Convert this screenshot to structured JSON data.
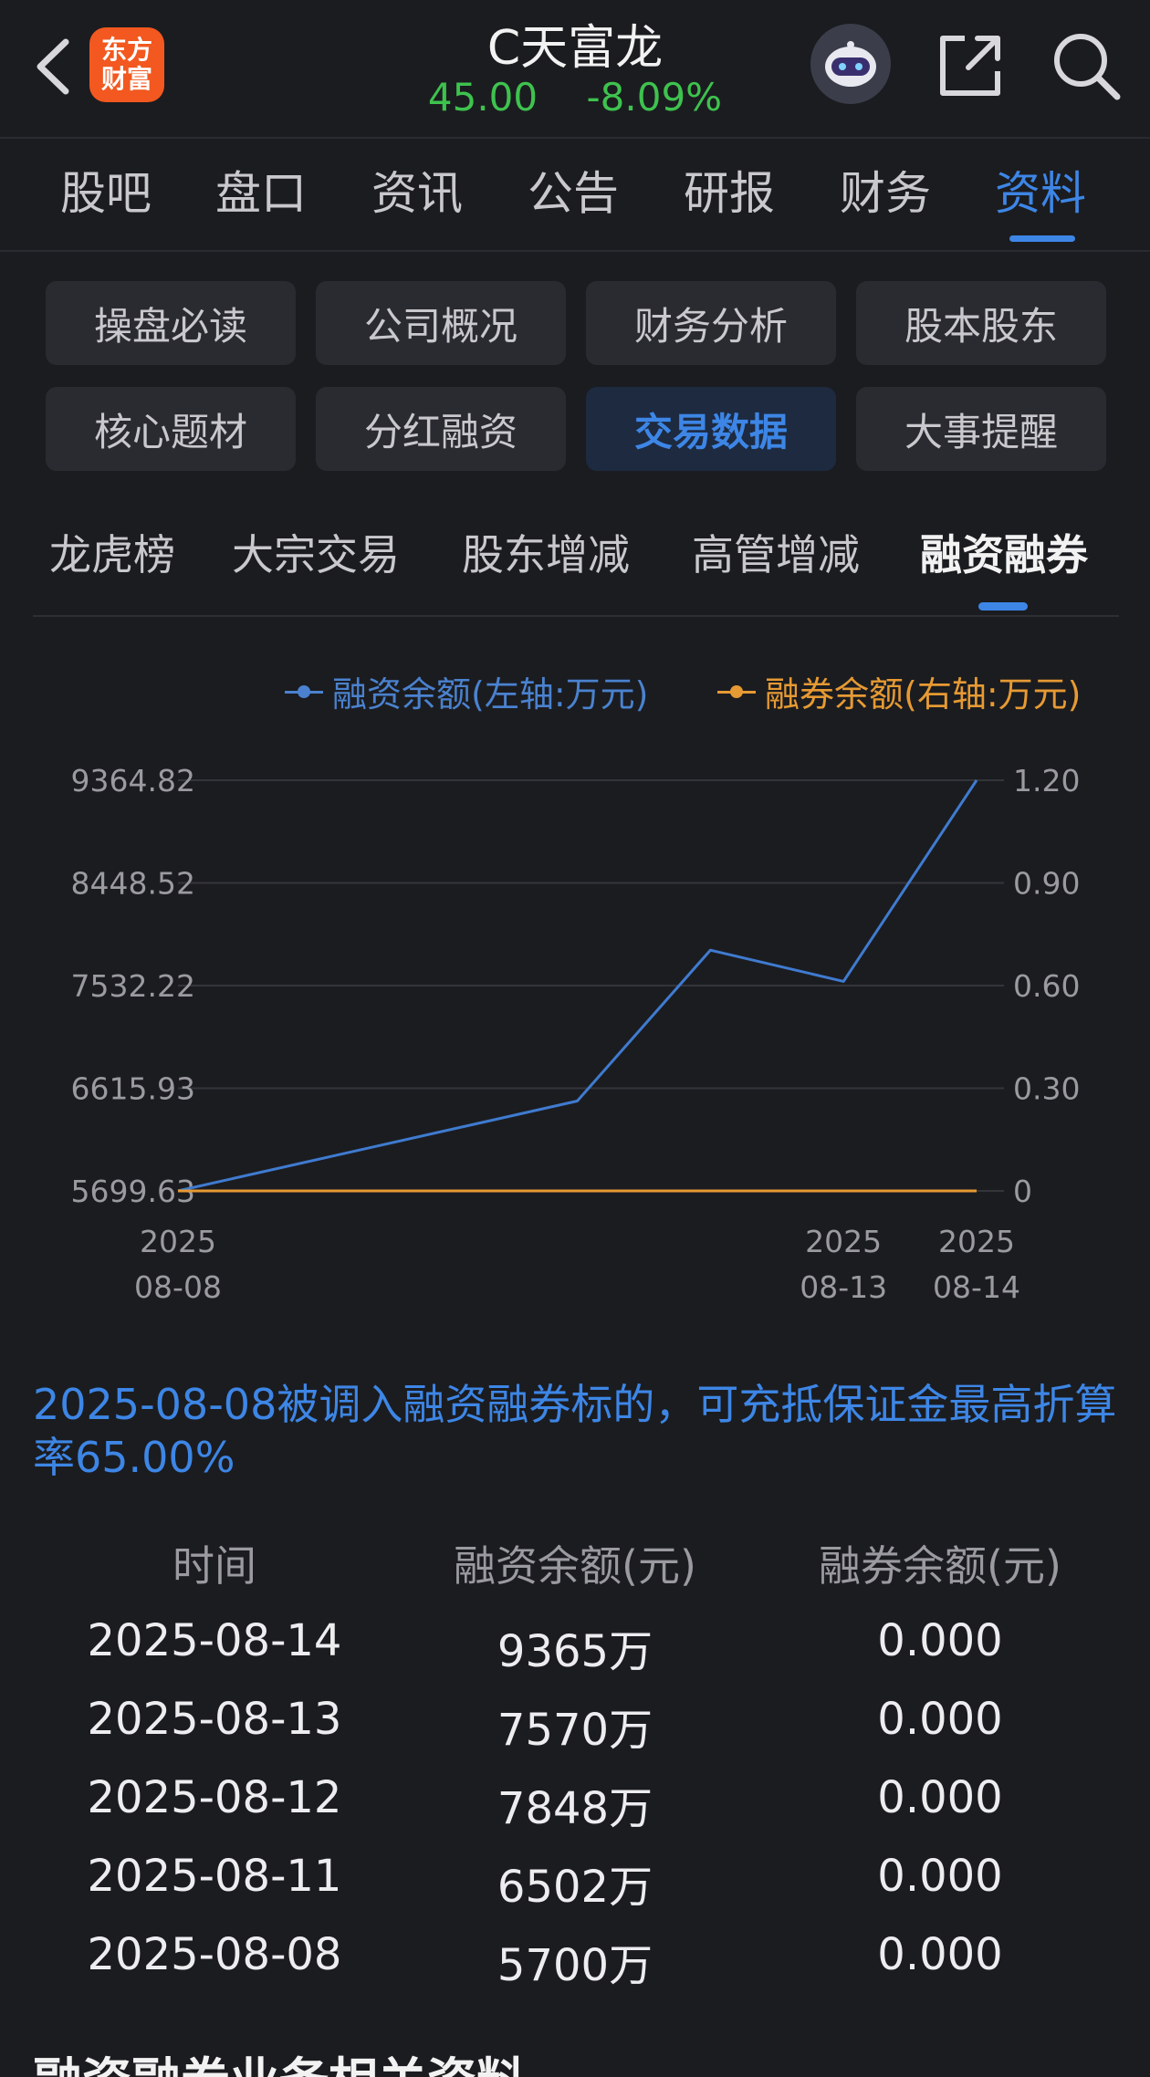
{
  "header": {
    "logo_line1": "东方",
    "logo_line2": "财富",
    "title": "C天富龙",
    "price": "45.00",
    "change": "-8.09%"
  },
  "main_tabs": [
    "股吧",
    "盘口",
    "资讯",
    "公告",
    "研报",
    "财务",
    "资料"
  ],
  "main_tab_active": "资料",
  "grid_buttons": [
    "操盘必读",
    "公司概况",
    "财务分析",
    "股本股东",
    "核心题材",
    "分红融资",
    "交易数据",
    "大事提醒"
  ],
  "grid_active": "交易数据",
  "sub_tabs": [
    "龙虎榜",
    "大宗交易",
    "股东增减",
    "高管增减",
    "融资融券"
  ],
  "sub_tab_active": "融资融券",
  "chart_data": {
    "type": "line",
    "legend": [
      "融资余额(左轴:万元)",
      "融券余额(右轴:万元)"
    ],
    "legend_position": "top-right",
    "x": [
      "2025-08-08",
      "2025-08-11",
      "2025-08-12",
      "2025-08-13",
      "2025-08-14"
    ],
    "x_tick_labels": [
      {
        "year": "2025",
        "date": "08-08",
        "at": "2025-08-08"
      },
      {
        "year": "2025",
        "date": "08-13",
        "at": "2025-08-13"
      },
      {
        "year": "2025",
        "date": "08-14",
        "at": "2025-08-14"
      }
    ],
    "series": [
      {
        "name": "融资余额(左轴:万元)",
        "axis": "left",
        "color": "#3f7bd0",
        "values": [
          5700,
          6502,
          7848,
          7570,
          9365
        ]
      },
      {
        "name": "融券余额(右轴:万元)",
        "axis": "right",
        "color": "#e69a33",
        "values": [
          0,
          0,
          0,
          0,
          0
        ]
      }
    ],
    "y_left_ticks": [
      "9364.82",
      "8448.52",
      "7532.22",
      "6615.93",
      "5699.63"
    ],
    "y_left_range": [
      5699.63,
      9364.82
    ],
    "y_right_ticks": [
      "1.20",
      "0.90",
      "0.60",
      "0.30",
      "0"
    ],
    "y_right_range": [
      0,
      1.2
    ],
    "grid": true
  },
  "notice": "2025-08-08被调入融资融券标的，可充抵保证金最高折算率65.00%",
  "table": {
    "headers": [
      "时间",
      "融资余额(元)",
      "融券余额(元)"
    ],
    "rows": [
      [
        "2025-08-14",
        "9365万",
        "0.000"
      ],
      [
        "2025-08-13",
        "7570万",
        "0.000"
      ],
      [
        "2025-08-12",
        "7848万",
        "0.000"
      ],
      [
        "2025-08-11",
        "6502万",
        "0.000"
      ],
      [
        "2025-08-08",
        "5700万",
        "0.000"
      ]
    ]
  },
  "next_section_title": "融资融券业务相关资料"
}
